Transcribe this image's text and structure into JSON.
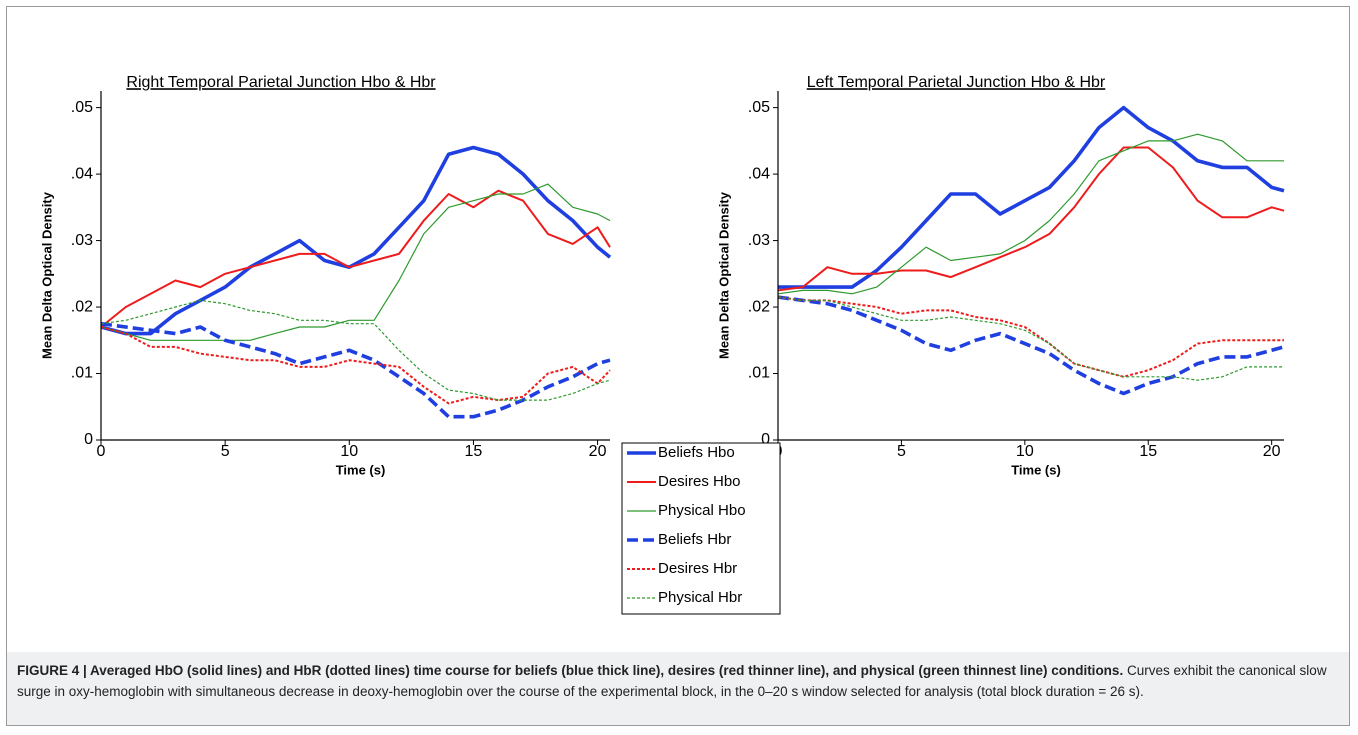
{
  "chart_data": [
    {
      "type": "line",
      "title": "Right Temporal Parietal Junction Hbo & Hbr",
      "xlabel": "Time (s)",
      "ylabel": "Mean Delta Optical Density",
      "x": [
        0,
        1,
        2,
        3,
        4,
        5,
        6,
        7,
        8,
        9,
        10,
        11,
        12,
        13,
        14,
        15,
        16,
        17,
        18,
        19,
        20,
        20.5
      ],
      "xlim": [
        0,
        20.5
      ],
      "xticks": [
        0,
        5,
        10,
        15,
        20
      ],
      "ylim": [
        0,
        0.0525
      ],
      "yticks": [
        0,
        {
          "value": 0.01,
          "label": ".01"
        },
        {
          "value": 0.02,
          "label": ".02"
        },
        {
          "value": 0.03,
          "label": ".03"
        },
        {
          "value": 0.04,
          "label": ".04"
        },
        {
          "value": 0.05,
          "label": ".05"
        }
      ],
      "series": [
        {
          "name": "Beliefs Hbo",
          "color": "#1f3fe0",
          "linewidth": "thick",
          "linestyle": "solid",
          "values": [
            0.017,
            0.016,
            0.016,
            0.019,
            0.021,
            0.023,
            0.026,
            0.028,
            0.03,
            0.027,
            0.026,
            0.028,
            0.032,
            0.036,
            0.043,
            0.044,
            0.043,
            0.04,
            0.036,
            0.033,
            0.029,
            0.0275
          ]
        },
        {
          "name": "Desires Hbo",
          "color": "#ee1c1c",
          "linewidth": "medium",
          "linestyle": "solid",
          "values": [
            0.017,
            0.02,
            0.022,
            0.024,
            0.023,
            0.025,
            0.026,
            0.027,
            0.028,
            0.028,
            0.026,
            0.027,
            0.028,
            0.033,
            0.037,
            0.035,
            0.0375,
            0.036,
            0.031,
            0.0295,
            0.032,
            0.029
          ]
        },
        {
          "name": "Physical Hbo",
          "color": "#2e9a2e",
          "linewidth": "thin",
          "linestyle": "solid",
          "values": [
            0.017,
            0.016,
            0.015,
            0.015,
            0.015,
            0.015,
            0.015,
            0.016,
            0.017,
            0.017,
            0.018,
            0.018,
            0.024,
            0.031,
            0.035,
            0.036,
            0.037,
            0.037,
            0.0385,
            0.035,
            0.034,
            0.033
          ]
        },
        {
          "name": "Beliefs Hbr",
          "color": "#1f3fe0",
          "linewidth": "thick",
          "linestyle": "dashed",
          "values": [
            0.0175,
            0.017,
            0.0165,
            0.016,
            0.017,
            0.015,
            0.014,
            0.013,
            0.0115,
            0.0125,
            0.0135,
            0.012,
            0.0095,
            0.007,
            0.0035,
            0.0035,
            0.0045,
            0.006,
            0.008,
            0.0095,
            0.0115,
            0.012
          ]
        },
        {
          "name": "Desires Hbr",
          "color": "#ee1c1c",
          "linewidth": "medium",
          "linestyle": "dotted",
          "values": [
            0.017,
            0.016,
            0.014,
            0.014,
            0.013,
            0.0125,
            0.012,
            0.012,
            0.011,
            0.011,
            0.012,
            0.0115,
            0.011,
            0.008,
            0.0055,
            0.0065,
            0.006,
            0.0065,
            0.01,
            0.011,
            0.0085,
            0.0105
          ]
        },
        {
          "name": "Physical Hbr",
          "color": "#2e9a2e",
          "linewidth": "thin",
          "linestyle": "dotted",
          "values": [
            0.0175,
            0.018,
            0.019,
            0.02,
            0.021,
            0.0205,
            0.0195,
            0.019,
            0.018,
            0.018,
            0.0175,
            0.0175,
            0.0135,
            0.01,
            0.0075,
            0.007,
            0.006,
            0.006,
            0.006,
            0.007,
            0.0085,
            0.009
          ]
        }
      ]
    },
    {
      "type": "line",
      "title": "Left Temporal Parietal Junction Hbo & Hbr",
      "xlabel": "Time (s)",
      "ylabel": "Mean Delta Optical Density",
      "x": [
        0,
        1,
        2,
        3,
        4,
        5,
        6,
        7,
        8,
        9,
        10,
        11,
        12,
        13,
        14,
        15,
        16,
        17,
        18,
        19,
        20,
        20.5
      ],
      "xlim": [
        0,
        20.5
      ],
      "xticks": [
        0,
        5,
        10,
        15,
        20
      ],
      "ylim": [
        0,
        0.0525
      ],
      "yticks": [
        0,
        {
          "value": 0.01,
          "label": ".01"
        },
        {
          "value": 0.02,
          "label": ".02"
        },
        {
          "value": 0.03,
          "label": ".03"
        },
        {
          "value": 0.04,
          "label": ".04"
        },
        {
          "value": 0.05,
          "label": ".05"
        }
      ],
      "series": [
        {
          "color": "#1f3fe0",
          "linewidth": "thick",
          "linestyle": "solid",
          "values": [
            0.023,
            0.023,
            0.023,
            0.023,
            0.0255,
            0.029,
            0.033,
            0.037,
            0.037,
            0.034,
            0.036,
            0.038,
            0.042,
            0.047,
            0.05,
            0.047,
            0.045,
            0.042,
            0.041,
            0.041,
            0.038,
            0.0375
          ]
        },
        {
          "color": "#ee1c1c",
          "linewidth": "medium",
          "linestyle": "solid",
          "values": [
            0.0225,
            0.023,
            0.026,
            0.025,
            0.025,
            0.0255,
            0.0255,
            0.0245,
            0.026,
            0.0275,
            0.029,
            0.031,
            0.035,
            0.04,
            0.044,
            0.044,
            0.041,
            0.036,
            0.0335,
            0.0335,
            0.035,
            0.0345
          ]
        },
        {
          "color": "#2e9a2e",
          "linewidth": "thin",
          "linestyle": "solid",
          "values": [
            0.022,
            0.0225,
            0.0225,
            0.022,
            0.023,
            0.026,
            0.029,
            0.027,
            0.0275,
            0.028,
            0.03,
            0.033,
            0.037,
            0.042,
            0.0435,
            0.045,
            0.045,
            0.046,
            0.045,
            0.042,
            0.042,
            0.042
          ]
        },
        {
          "color": "#1f3fe0",
          "linewidth": "thick",
          "linestyle": "dashed",
          "values": [
            0.0215,
            0.021,
            0.0205,
            0.0195,
            0.018,
            0.0165,
            0.0145,
            0.0135,
            0.015,
            0.016,
            0.0145,
            0.013,
            0.0105,
            0.0085,
            0.007,
            0.0085,
            0.0095,
            0.0115,
            0.0125,
            0.0125,
            0.0135,
            0.014
          ]
        },
        {
          "color": "#ee1c1c",
          "linewidth": "medium",
          "linestyle": "dotted",
          "values": [
            0.0215,
            0.021,
            0.021,
            0.0205,
            0.02,
            0.019,
            0.0195,
            0.0195,
            0.0185,
            0.018,
            0.017,
            0.0145,
            0.0115,
            0.0105,
            0.0095,
            0.0105,
            0.012,
            0.0145,
            0.015,
            0.015,
            0.015,
            0.015
          ]
        },
        {
          "color": "#2e9a2e",
          "linewidth": "thin",
          "linestyle": "dotted",
          "values": [
            0.0215,
            0.021,
            0.021,
            0.02,
            0.019,
            0.018,
            0.018,
            0.0185,
            0.018,
            0.0175,
            0.0165,
            0.0145,
            0.0115,
            0.0105,
            0.0095,
            0.0095,
            0.0095,
            0.009,
            0.0095,
            0.011,
            0.011,
            0.011
          ]
        }
      ]
    }
  ],
  "caption": {
    "label": "FIGURE 4 | Averaged HbO (solid lines) and HbR (dotted lines) time course for beliefs (blue thick line), desires (red thinner line), and physical (green thinnest line) conditions.",
    "text": "Curves exhibit the canonical slow surge in oxy-hemoglobin with simultaneous decrease in deoxy-hemoglobin over the course of the experimental block, in the 0–20 s window selected for analysis (total block duration = 26 s)."
  }
}
